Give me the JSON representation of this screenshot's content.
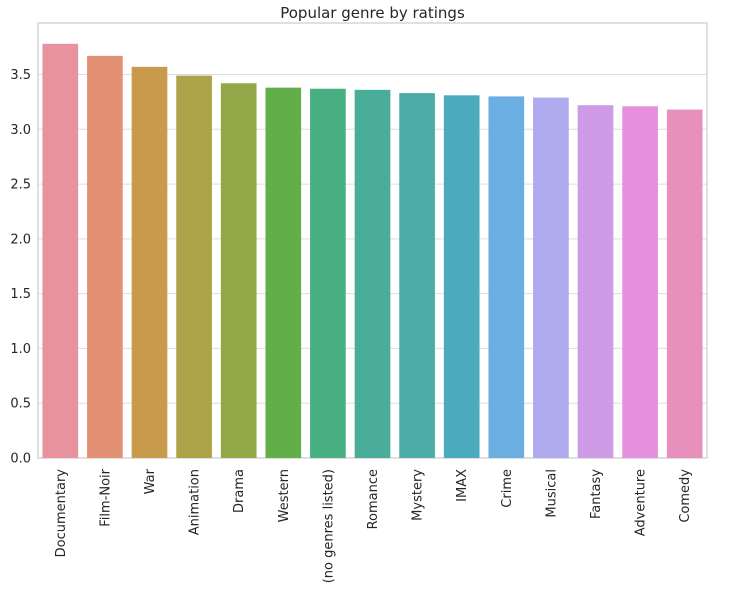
{
  "chart_data": {
    "type": "bar",
    "title": "Popular genre by ratings",
    "xlabel": "",
    "ylabel": "",
    "categories": [
      "Documentary",
      "Film-Noir",
      "War",
      "Animation",
      "Drama",
      "Western",
      "(no genres listed)",
      "Romance",
      "Mystery",
      "IMAX",
      "Crime",
      "Musical",
      "Fantasy",
      "Adventure",
      "Comedy"
    ],
    "values": [
      3.78,
      3.67,
      3.57,
      3.49,
      3.42,
      3.38,
      3.37,
      3.36,
      3.33,
      3.31,
      3.3,
      3.29,
      3.22,
      3.21,
      3.18
    ],
    "colors": [
      "#e8929f",
      "#e39175",
      "#c79b4b",
      "#aca247",
      "#92a745",
      "#62ae49",
      "#48af82",
      "#4aad9a",
      "#4baca8",
      "#4caabe",
      "#6aaee2",
      "#b0aaee",
      "#cf9be7",
      "#e58fdd",
      "#e890bc"
    ],
    "ylim": [
      0,
      3.97
    ],
    "yticks": [
      "0.0",
      "0.5",
      "1.0",
      "1.5",
      "2.0",
      "2.5",
      "3.0",
      "3.5"
    ],
    "grid": true,
    "legend": "none"
  }
}
